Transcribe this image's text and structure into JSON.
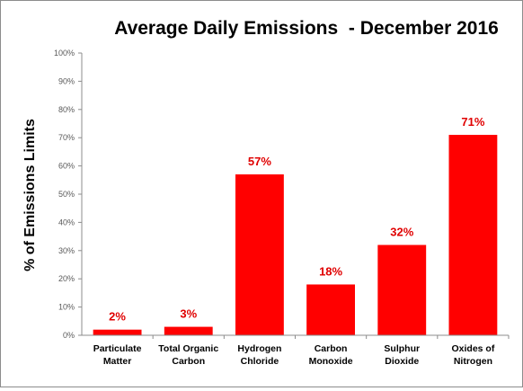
{
  "chart_data": {
    "type": "bar",
    "title": "Average Daily Emissions  - December 2016",
    "ylabel": "% of Emissions Limits",
    "xlabel": "",
    "ylim": [
      0,
      100
    ],
    "yticks": [
      "0%",
      "10%",
      "20%",
      "30%",
      "40%",
      "50%",
      "60%",
      "70%",
      "80%",
      "90%",
      "100%"
    ],
    "categories": [
      [
        "Particulate",
        "Matter"
      ],
      [
        "Total Organic",
        "Carbon"
      ],
      [
        "Hydrogen",
        "Chloride"
      ],
      [
        "Carbon",
        "Monoxide"
      ],
      [
        "Sulphur",
        "Dioxide"
      ],
      [
        "Oxides of",
        "Nitrogen"
      ]
    ],
    "values": [
      2,
      3,
      57,
      18,
      32,
      71
    ],
    "data_labels": [
      "2%",
      "3%",
      "57%",
      "18%",
      "32%",
      "71%"
    ],
    "bar_color": "#ff0000",
    "label_color": "#e00000",
    "grid": false,
    "legend": "none"
  }
}
